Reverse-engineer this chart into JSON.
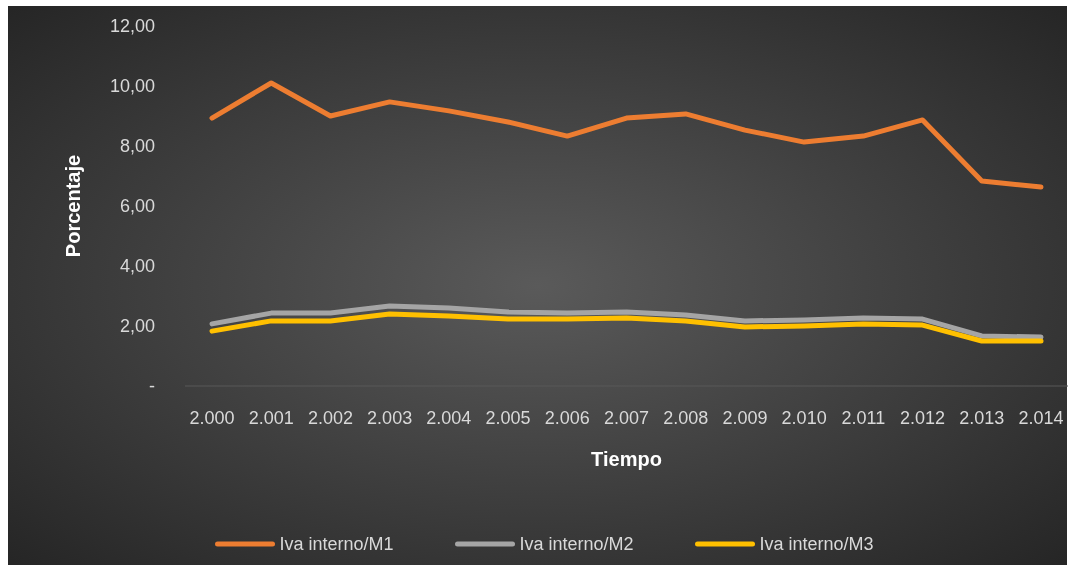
{
  "chart_data": {
    "type": "line",
    "xlabel": "Tiempo",
    "ylabel": "Porcentaje",
    "categories": [
      "2.000",
      "2.001",
      "2.002",
      "2.003",
      "2.004",
      "2.005",
      "2.006",
      "2.007",
      "2.008",
      "2.009",
      "2.010",
      "2.011",
      "2.012",
      "2.013",
      "2.014"
    ],
    "series": [
      {
        "name": "Iva interno/M1",
        "color": "#ed7d31",
        "values": [
          8.93,
          10.1,
          9.0,
          9.47,
          9.17,
          8.8,
          8.33,
          8.93,
          9.07,
          8.53,
          8.13,
          8.33,
          8.87,
          6.83,
          6.63
        ]
      },
      {
        "name": "Iva interno/M2",
        "color": "#a5a5a5",
        "values": [
          2.07,
          2.43,
          2.43,
          2.67,
          2.6,
          2.47,
          2.43,
          2.47,
          2.37,
          2.17,
          2.2,
          2.27,
          2.23,
          1.67,
          1.63
        ]
      },
      {
        "name": "Iva interno/M3",
        "color": "#ffc000",
        "values": [
          1.83,
          2.17,
          2.17,
          2.4,
          2.33,
          2.23,
          2.23,
          2.27,
          2.17,
          1.97,
          2.0,
          2.07,
          2.03,
          1.5,
          1.5
        ]
      }
    ],
    "ylim": [
      0,
      12
    ],
    "yticks": [
      {
        "value": 0,
        "label": "-"
      },
      {
        "value": 2,
        "label": "2,00"
      },
      {
        "value": 4,
        "label": "4,00"
      },
      {
        "value": 6,
        "label": "6,00"
      },
      {
        "value": 8,
        "label": "8,00"
      },
      {
        "value": 10,
        "label": "10,00"
      },
      {
        "value": 12,
        "label": "12,00"
      }
    ],
    "grid": false,
    "legend": "bottom",
    "marker": "none",
    "line_style": "solid"
  }
}
